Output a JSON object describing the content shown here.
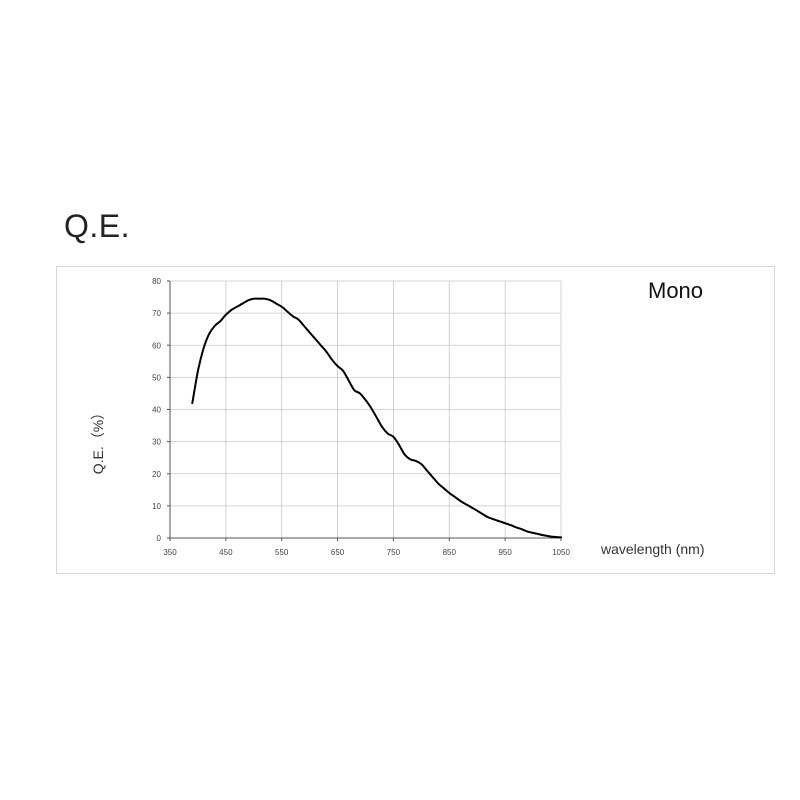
{
  "page": {
    "title": "Q.E."
  },
  "chart_data": {
    "type": "line",
    "title": "",
    "series_label": "Mono",
    "xlabel": "wavelength (nm)",
    "ylabel": "Q.E.（%）",
    "xlim": [
      350,
      1050
    ],
    "ylim": [
      0,
      80
    ],
    "xticks": [
      350,
      450,
      550,
      650,
      750,
      850,
      950,
      1050
    ],
    "yticks": [
      0,
      10,
      20,
      30,
      40,
      50,
      60,
      70,
      80
    ],
    "grid": true,
    "series": [
      {
        "name": "Mono",
        "color": "#000000",
        "x": [
          390,
          400,
          410,
          420,
          430,
          440,
          450,
          460,
          470,
          480,
          490,
          500,
          510,
          520,
          530,
          540,
          550,
          560,
          570,
          580,
          590,
          600,
          610,
          620,
          630,
          640,
          650,
          660,
          670,
          680,
          690,
          700,
          710,
          720,
          730,
          740,
          750,
          760,
          770,
          780,
          790,
          800,
          810,
          820,
          830,
          840,
          850,
          860,
          870,
          880,
          890,
          900,
          910,
          920,
          930,
          940,
          950,
          960,
          970,
          980,
          990,
          1000,
          1010,
          1020,
          1030,
          1040,
          1050
        ],
        "y": [
          42,
          52,
          59,
          63.5,
          66,
          67.5,
          69.5,
          71,
          72,
          73,
          74,
          74.5,
          74.5,
          74.5,
          74,
          73,
          72,
          70.5,
          69,
          68,
          66,
          64,
          62,
          60,
          58,
          55.5,
          53.5,
          52,
          49,
          46,
          45,
          43,
          40.5,
          37.5,
          34.5,
          32.5,
          31.5,
          29,
          26,
          24.5,
          24,
          23,
          21,
          19,
          17,
          15.5,
          14,
          12.8,
          11.5,
          10.5,
          9.5,
          8.5,
          7.4,
          6.4,
          5.8,
          5.2,
          4.6,
          4,
          3.3,
          2.7,
          2,
          1.6,
          1.2,
          0.8,
          0.5,
          0.3,
          0.2
        ]
      }
    ]
  }
}
